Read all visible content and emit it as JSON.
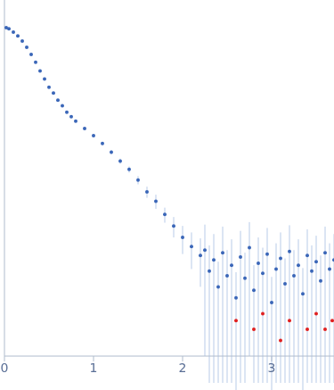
{
  "chart_data": {
    "type": "scatter",
    "log": "y",
    "grid": false,
    "tick_labels": "x",
    "xlim": [
      0,
      3.7
    ],
    "xticks": [
      0,
      1,
      2,
      3
    ],
    "ylim": [
      0.0002,
      2
    ],
    "yticks": [
      0.001,
      0.01,
      0.1
    ],
    "series": [
      {
        "color": "#3a66b8",
        "marker": "circle",
        "x": [
          0.02,
          0.05,
          0.1,
          0.15,
          0.2,
          0.25,
          0.3,
          0.35,
          0.4,
          0.45,
          0.5,
          0.55,
          0.6,
          0.65,
          0.7,
          0.75,
          0.8,
          0.9,
          1.0,
          1.1,
          1.2,
          1.3,
          1.4,
          1.5,
          1.6,
          1.7,
          1.8,
          1.9,
          2.0,
          2.1,
          2.2,
          2.25,
          2.3,
          2.35,
          2.4,
          2.45,
          2.5,
          2.55,
          2.6,
          2.65,
          2.7,
          2.75,
          2.8,
          2.85,
          2.9,
          2.95,
          3.0,
          3.05,
          3.1,
          3.15,
          3.2,
          3.25,
          3.3,
          3.35,
          3.4,
          3.45,
          3.5,
          3.55,
          3.6,
          3.65,
          3.7
        ],
        "values": [
          0.98,
          0.95,
          0.87,
          0.79,
          0.69,
          0.59,
          0.49,
          0.4,
          0.32,
          0.26,
          0.21,
          0.18,
          0.15,
          0.13,
          0.11,
          0.098,
          0.087,
          0.072,
          0.06,
          0.049,
          0.039,
          0.031,
          0.025,
          0.019,
          0.014,
          0.011,
          0.0078,
          0.0058,
          0.0043,
          0.0034,
          0.0027,
          0.0031,
          0.0018,
          0.0024,
          0.0012,
          0.0029,
          0.0016,
          0.0021,
          0.0009,
          0.0026,
          0.0015,
          0.0033,
          0.0011,
          0.0022,
          0.0017,
          0.0028,
          0.0008,
          0.0019,
          0.0025,
          0.0013,
          0.003,
          0.0016,
          0.0021,
          0.001,
          0.0027,
          0.0018,
          0.0023,
          0.0014,
          0.0029,
          0.0019,
          0.0024
        ],
        "errors": [
          0.01,
          0.01,
          0.008,
          0.007,
          0.006,
          0.005,
          0.004,
          0.004,
          0.003,
          0.003,
          0.002,
          0.002,
          0.002,
          0.002,
          0.002,
          0.002,
          0.002,
          0.002,
          0.002,
          0.002,
          0.002,
          0.002,
          0.002,
          0.002,
          0.002,
          0.002,
          0.0015,
          0.0015,
          0.0015,
          0.0015,
          0.0015,
          0.0029,
          0.0017,
          0.0023,
          0.0011,
          0.0028,
          0.0015,
          0.002,
          0.00085,
          0.0025,
          0.0014,
          0.0031,
          0.001,
          0.0021,
          0.0016,
          0.0027,
          0.00075,
          0.0018,
          0.0024,
          0.0012,
          0.0029,
          0.0015,
          0.002,
          0.00095,
          0.0026,
          0.0017,
          0.0022,
          0.0013,
          0.0028,
          0.0018,
          0.0023
        ]
      },
      {
        "color": "#e02020",
        "marker": "circle",
        "x": [
          2.6,
          2.8,
          2.9,
          3.1,
          3.2,
          3.4,
          3.5,
          3.6,
          3.68
        ],
        "values": [
          0.0005,
          0.0004,
          0.0006,
          0.0003,
          0.0005,
          0.0004,
          0.0006,
          0.0004,
          0.0005
        ]
      }
    ]
  }
}
